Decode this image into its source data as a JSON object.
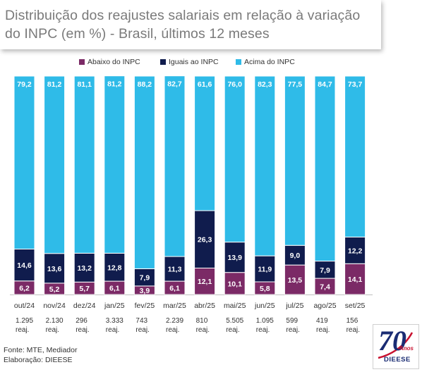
{
  "title": "Distribuição dos reajustes salariais em relação à variação do INPC (em %) - Brasil, últimos 12 meses",
  "colors": {
    "abaixo": "#7b2a66",
    "iguais": "#101c4d",
    "acima": "#2fbbe8"
  },
  "chart_data": {
    "type": "bar",
    "stacked": true,
    "categories": [
      "out/24",
      "nov/24",
      "dez/24",
      "jan/25",
      "fev/25",
      "mar/25",
      "abr/25",
      "mai/25",
      "jun/25",
      "jul/25",
      "ago/25",
      "set/25"
    ],
    "sublabels": [
      [
        "1.295",
        "reaj."
      ],
      [
        "2.130",
        "reaj."
      ],
      [
        "296",
        "reaj."
      ],
      [
        "3.333",
        "reaj."
      ],
      [
        "743",
        "reaj."
      ],
      [
        "2.239",
        "reaj."
      ],
      [
        "810",
        "reaj."
      ],
      [
        "5.505",
        "reaj."
      ],
      [
        "1.095",
        "reaj."
      ],
      [
        "599",
        "reaj."
      ],
      [
        "419",
        "reaj."
      ],
      [
        "156",
        "reaj."
      ]
    ],
    "series": [
      {
        "name": "Abaixo do INPC",
        "key": "abaixo",
        "values": [
          6.2,
          5.2,
          5.7,
          6.1,
          3.9,
          6.1,
          12.1,
          10.1,
          5.8,
          13.5,
          7.4,
          14.1
        ],
        "labels": [
          "6,2",
          "5,2",
          "5,7",
          "6,1",
          "3,9",
          "6,1",
          "12,1",
          "10,1",
          "5,8",
          "13,5",
          "7,4",
          "14,1"
        ]
      },
      {
        "name": "Iguais ao INPC",
        "key": "iguais",
        "values": [
          14.6,
          13.6,
          13.2,
          12.8,
          7.9,
          11.3,
          26.3,
          13.9,
          11.9,
          9.0,
          7.9,
          12.2
        ],
        "labels": [
          "14,6",
          "13,6",
          "13,2",
          "12,8",
          "7,9",
          "11,3",
          "26,3",
          "13,9",
          "11,9",
          "9,0",
          "7,9",
          "12,2"
        ]
      },
      {
        "name": "Acima do INPC",
        "key": "acima",
        "values": [
          79.2,
          81.2,
          81.1,
          81.2,
          88.2,
          82.7,
          61.6,
          76.0,
          82.3,
          77.5,
          84.7,
          73.7
        ],
        "labels": [
          "79,2",
          "81,2",
          "81,1",
          "81,2",
          "88,2",
          "82,7",
          "61,6",
          "76,0",
          "82,3",
          "77,5",
          "84,7",
          "73,7"
        ]
      }
    ],
    "ylim": [
      0,
      100
    ],
    "legend_position": "top"
  },
  "footer": {
    "source": "Fonte: MTE, Mediador",
    "elaboration": "Elaboração: DIEESE"
  },
  "logo": {
    "number": "70",
    "anos": "Anos",
    "name": "DIEESE"
  }
}
